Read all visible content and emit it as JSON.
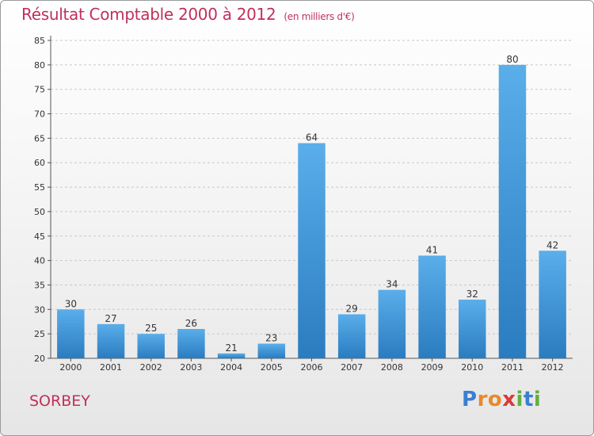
{
  "header": {
    "title": "Résultat Comptable 2000 à 2012",
    "subtitle": "(en milliers d'€)"
  },
  "footer": {
    "place": "SORBEY"
  },
  "logo": {
    "letters": [
      {
        "ch": "P",
        "color": "#3a7fd0"
      },
      {
        "ch": "r",
        "color": "#e8892a"
      },
      {
        "ch": "o",
        "color": "#e8892a"
      },
      {
        "ch": "x",
        "color": "#d93a3a"
      },
      {
        "ch": "i",
        "color": "#5fb040"
      },
      {
        "ch": "t",
        "color": "#3a7fd0"
      },
      {
        "ch": "i",
        "color": "#5fb040"
      }
    ]
  },
  "chart_data": {
    "type": "bar",
    "title": "Résultat Comptable 2000 à 2012",
    "subtitle": "(en milliers d'€)",
    "categories": [
      "2000",
      "2001",
      "2002",
      "2003",
      "2004",
      "2005",
      "2006",
      "2007",
      "2008",
      "2009",
      "2010",
      "2011",
      "2012"
    ],
    "values": [
      30,
      27,
      25,
      26,
      21,
      23,
      64,
      29,
      34,
      41,
      32,
      80,
      42
    ],
    "ylim": [
      20,
      85
    ],
    "yticks": [
      20,
      25,
      30,
      35,
      40,
      45,
      50,
      55,
      60,
      65,
      70,
      75,
      80,
      85
    ],
    "grid": true,
    "bar_color": "#4a9fe0",
    "xlabel": "",
    "ylabel": ""
  }
}
